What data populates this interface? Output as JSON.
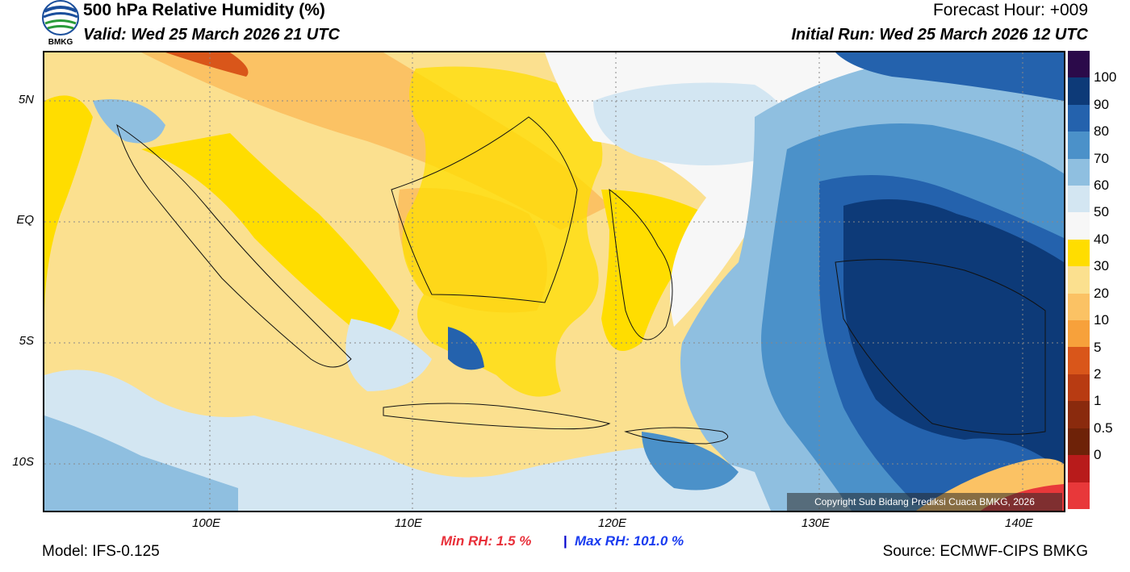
{
  "header": {
    "title": "500 hPa Relative Humidity (%)",
    "valid": "Valid: Wed 25 March 2026 21 UTC",
    "forecast_hour": "Forecast Hour: +009",
    "initial_run": "Initial Run: Wed 25 March 2026 12 UTC",
    "logo_text": "BMKG"
  },
  "axes": {
    "lat_labels": [
      "5N",
      "EQ",
      "5S",
      "10S"
    ],
    "lon_labels": [
      "100E",
      "110E",
      "120E",
      "130E",
      "140E"
    ]
  },
  "colorbar": {
    "labels": [
      "100",
      "90",
      "80",
      "70",
      "60",
      "50",
      "40",
      "30",
      "20",
      "10",
      "5",
      "2",
      "1",
      "0.5",
      "0"
    ],
    "colors": [
      "#2b0a4a",
      "#0d3a78",
      "#2462ad",
      "#4b91c9",
      "#8fbfe0",
      "#d3e6f2",
      "#f7f7f7",
      "#ffdd00",
      "#fbe08f",
      "#fbc264",
      "#f7a13b",
      "#d9561a",
      "#b83b12",
      "#8a2a0d",
      "#6e2208",
      "#b81b1b",
      "#e8383a"
    ]
  },
  "stats": {
    "min_rh": "Min RH:   1.5 %",
    "separator": "|",
    "max_rh": "Max RH: 101.0 %"
  },
  "footer": {
    "model": "Model: IFS-0.125",
    "source": "Source: ECMWF-CIPS BMKG",
    "copyright": "Copyright Sub Bidang Prediksi Cuaca BMKG, 2026"
  }
}
